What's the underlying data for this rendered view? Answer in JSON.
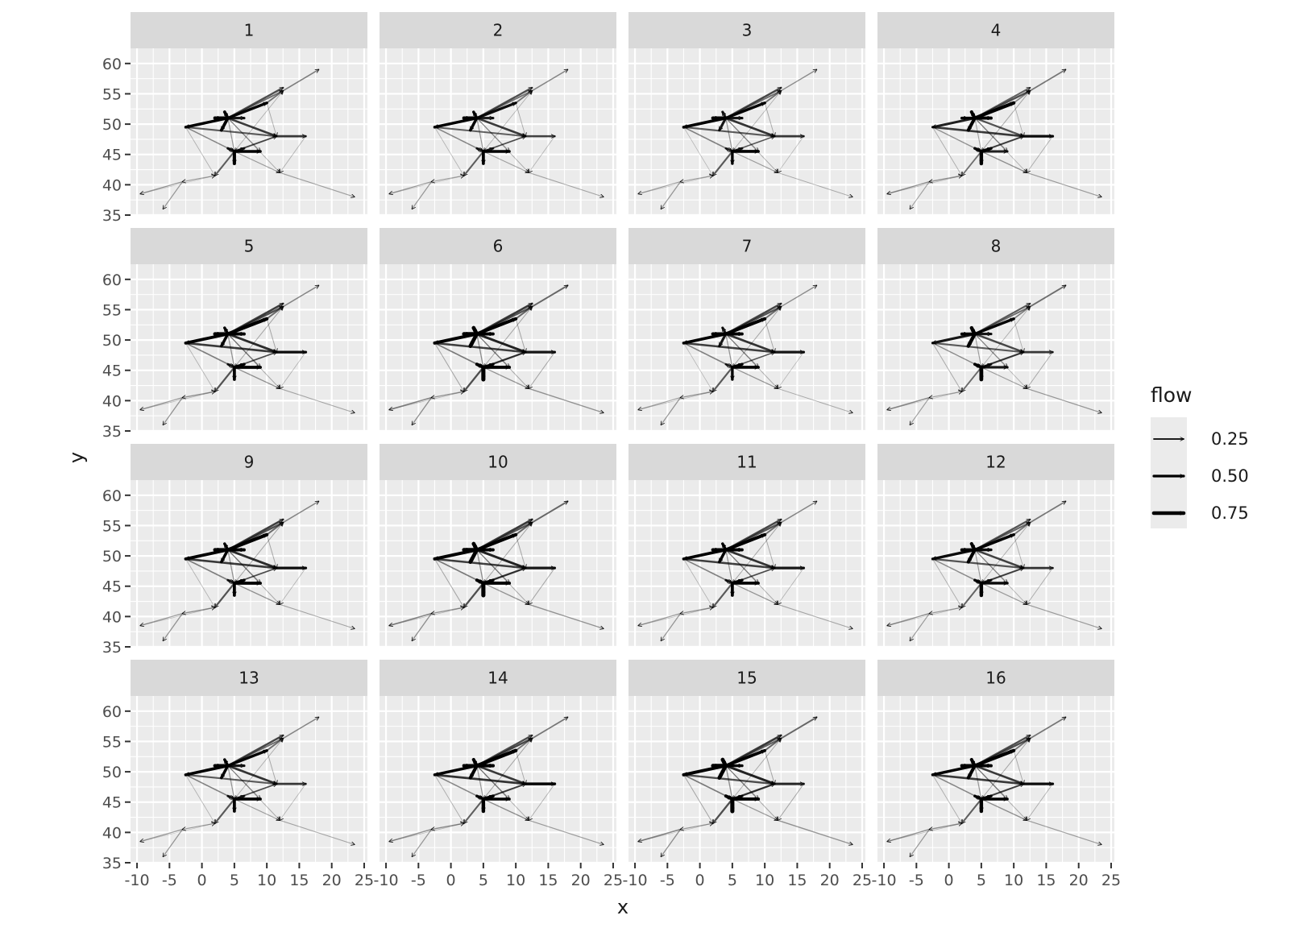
{
  "chart_data": {
    "type": "flow-map-facets",
    "panels": [
      "1",
      "2",
      "3",
      "4",
      "5",
      "6",
      "7",
      "8",
      "9",
      "10",
      "11",
      "12",
      "13",
      "14",
      "15",
      "16"
    ],
    "xlabel": "x",
    "ylabel": "y",
    "xlim": [
      -11,
      25.5
    ],
    "ylim": [
      35,
      62.5
    ],
    "x_ticks": [
      -10,
      -5,
      0,
      5,
      10,
      15,
      20,
      25
    ],
    "y_ticks": [
      35,
      40,
      45,
      50,
      55,
      60
    ],
    "x_tick_labels": [
      "-10",
      "-5",
      "0",
      "5",
      "10",
      "15",
      "20",
      "25"
    ],
    "y_tick_labels": [
      "35",
      "40",
      "45",
      "50",
      "55",
      "60"
    ],
    "legend": {
      "title": "flow",
      "placement": "right",
      "values": [
        0.25,
        0.5,
        0.75
      ],
      "labels": [
        "0.25",
        "0.50",
        "0.75"
      ]
    },
    "grid": true,
    "colors": {
      "panel_bg": "#ebebeb",
      "strip_bg": "#d9d9d9",
      "grid": "#ffffff",
      "line": "#000000",
      "text": "#1a1a1a",
      "axis_text": "#4d4d4d"
    },
    "nodes": [
      [
        4,
        51
      ],
      [
        5,
        45.5
      ],
      [
        -2.5,
        49.5
      ],
      [
        10,
        53.5
      ],
      [
        12.5,
        55.5
      ],
      [
        18,
        59
      ],
      [
        11.5,
        48
      ],
      [
        16,
        48
      ],
      [
        9,
        45.5
      ],
      [
        12,
        42
      ],
      [
        23.5,
        38
      ],
      [
        2,
        41.5
      ],
      [
        -3,
        40.5
      ],
      [
        -9.5,
        38.5
      ],
      [
        -6,
        36
      ],
      [
        3,
        49
      ],
      [
        2,
        51
      ],
      [
        6.5,
        51
      ],
      [
        3.5,
        52
      ],
      [
        5,
        43.5
      ],
      [
        6.5,
        46
      ],
      [
        4,
        46
      ],
      [
        12.5,
        56
      ]
    ],
    "base_flows": [
      [
        0,
        2,
        0.55
      ],
      [
        0,
        3,
        0.6
      ],
      [
        0,
        15,
        0.55
      ],
      [
        0,
        16,
        0.65
      ],
      [
        0,
        17,
        0.55
      ],
      [
        0,
        18,
        0.55
      ],
      [
        0,
        6,
        0.4
      ],
      [
        0,
        4,
        0.3
      ],
      [
        1,
        19,
        0.6
      ],
      [
        1,
        8,
        0.55
      ],
      [
        1,
        20,
        0.5
      ],
      [
        1,
        21,
        0.45
      ],
      [
        1,
        11,
        0.3
      ],
      [
        6,
        7,
        0.45
      ],
      [
        4,
        5,
        0.2
      ],
      [
        3,
        4,
        0.25
      ],
      [
        2,
        6,
        0.35
      ],
      [
        6,
        1,
        0.25
      ],
      [
        2,
        1,
        0.2
      ],
      [
        11,
        12,
        0.15
      ],
      [
        12,
        13,
        0.15
      ],
      [
        12,
        14,
        0.15
      ],
      [
        1,
        9,
        0.15
      ],
      [
        9,
        10,
        0.12
      ],
      [
        0,
        1,
        0.15
      ],
      [
        0,
        8,
        0.15
      ],
      [
        1,
        6,
        0.15
      ],
      [
        0,
        9,
        0.1
      ],
      [
        1,
        4,
        0.1
      ],
      [
        2,
        11,
        0.08
      ],
      [
        0,
        22,
        0.35
      ],
      [
        13,
        11,
        0.06
      ],
      [
        7,
        9,
        0.08
      ],
      [
        3,
        6,
        0.1
      ]
    ],
    "panel_factors": [
      [
        1.0,
        0.9,
        1.1
      ],
      [
        1.0,
        0.85,
        1.0
      ],
      [
        1.05,
        0.9,
        0.9
      ],
      [
        0.85,
        1.15,
        1.2
      ],
      [
        1.1,
        1.15,
        1.0
      ],
      [
        1.15,
        1.1,
        1.4
      ],
      [
        1.05,
        1.1,
        0.9
      ],
      [
        0.9,
        0.9,
        1.3
      ],
      [
        1.1,
        1.15,
        1.0
      ],
      [
        1.15,
        1.1,
        1.4
      ],
      [
        1.05,
        1.1,
        1.0
      ],
      [
        0.95,
        0.95,
        1.2
      ],
      [
        1.05,
        0.9,
        1.0
      ],
      [
        1.0,
        1.2,
        1.2
      ],
      [
        1.15,
        1.0,
        1.4
      ],
      [
        1.0,
        1.15,
        1.2
      ]
    ]
  }
}
